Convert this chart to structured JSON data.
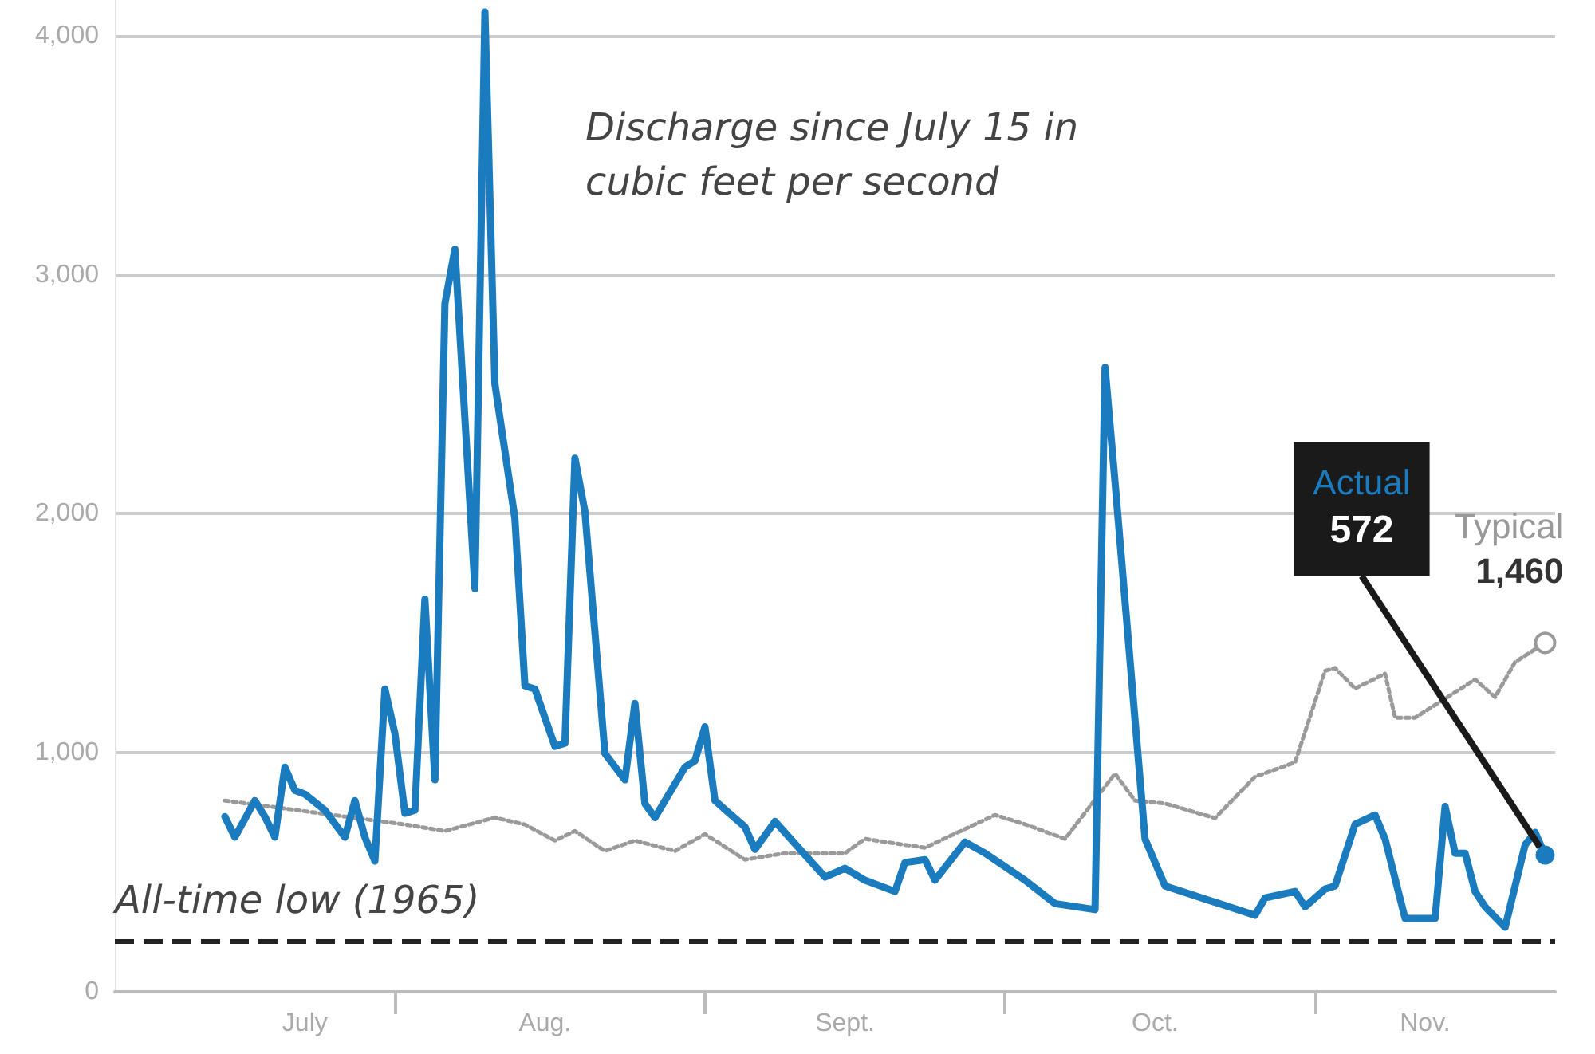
{
  "chart_data": {
    "type": "line",
    "title": "Discharge since July 15 in cubic feet per second",
    "xlim": [
      "--07-04",
      "--11-25"
    ],
    "xticks": [
      {
        "value": "--07-23",
        "label": "July"
      },
      {
        "value": "--08-01",
        "label": null
      },
      {
        "value": "--08-16",
        "label": "Aug."
      },
      {
        "value": "--09-01",
        "label": null
      },
      {
        "value": "--09-15",
        "label": "Sept."
      },
      {
        "value": "--10-01",
        "label": null
      },
      {
        "value": "--10-16",
        "label": "Oct."
      },
      {
        "value": "--11-01",
        "label": null
      },
      {
        "value": "--11-12",
        "label": "Nov."
      }
    ],
    "ylim": [
      0,
      4150
    ],
    "yticks": [
      0,
      {
        "value": 1000,
        "label": "1,000"
      },
      {
        "value": 2000,
        "label": "2,000"
      },
      {
        "value": 3000,
        "label": "3,000"
      },
      {
        "value": 4000,
        "label": "4,000"
      }
    ],
    "grid": "y",
    "series": [
      {
        "name": "Typical",
        "color": "#9a9a9a",
        "line_style": "dotted",
        "x": [
          "--07-15",
          "--08-02",
          "--08-06",
          "--08-11",
          "--08-14",
          "--08-17",
          "--08-19",
          "--08-22",
          "--08-25",
          "--08-29",
          "--09-01",
          "--09-05",
          "--09-09",
          "--09-15",
          "--09-17",
          "--09-21",
          "--09-23",
          "--09-30",
          "--10-03",
          "--10-07",
          "--10-12",
          "--10-14",
          "--10-17",
          "--10-22",
          "--10-26",
          "--10-30",
          "--11-02",
          "--11-03",
          "--11-05",
          "--11-08",
          "--11-09",
          "--11-11",
          "--11-17",
          "--11-19",
          "--11-21",
          "--11-24"
        ],
        "values": [
          800,
          700,
          673,
          729,
          700,
          633,
          673,
          589,
          633,
          589,
          660,
          553,
          580,
          580,
          640,
          615,
          603,
          740,
          701,
          640,
          913,
          800,
          788,
          727,
          900,
          960,
          1343,
          1355,
          1269,
          1331,
          1147,
          1147,
          1307,
          1233,
          1380,
          1460
        ],
        "value_labels": [
          null,
          null,
          null,
          null,
          null,
          null,
          null,
          null,
          null,
          null,
          null,
          null,
          null,
          null,
          null,
          null,
          null,
          null,
          null,
          null,
          null,
          null,
          null,
          null,
          null,
          null,
          null,
          null,
          null,
          null,
          null,
          null,
          null,
          null,
          null,
          "1,460"
        ]
      },
      {
        "name": "Actual",
        "color": "#1a7bbf",
        "line_style": "solid",
        "x": [
          "--07-15",
          "--07-16",
          "--07-18",
          "--07-19",
          "--07-20",
          "--07-21",
          "--07-22",
          "--07-23",
          "--07-25",
          "--07-27",
          "--07-28",
          "--07-29",
          "--07-30",
          "--07-31",
          "--08-01",
          "--08-02",
          "--08-03",
          "--08-04",
          "--08-05",
          "--08-06",
          "--08-07",
          "--08-09",
          "--08-10",
          "--08-11",
          "--08-13",
          "--08-14",
          "--08-15",
          "--08-17",
          "--08-18",
          "--08-19",
          "--08-20",
          "--08-22",
          "--08-24",
          "--08-25",
          "--08-26",
          "--08-27",
          "--08-30",
          "--08-31",
          "--09-01",
          "--09-02",
          "--09-03",
          "--09-05",
          "--09-06",
          "--09-08",
          "--09-13",
          "--09-15",
          "--09-17",
          "--09-20",
          "--09-21",
          "--09-23",
          "--09-24",
          "--09-27",
          "--09-29",
          "--10-03",
          "--10-06",
          "--10-10",
          "--10-11",
          "--10-12",
          "--10-15",
          "--10-17",
          "--10-26",
          "--10-27",
          "--10-30",
          "--10-31",
          "--11-02",
          "--11-03",
          "--11-05",
          "--11-07",
          "--11-08",
          "--11-10",
          "--11-13",
          "--11-14",
          "--11-15",
          "--11-16",
          "--11-17",
          "--11-18",
          "--11-20",
          "--11-22",
          "--11-23",
          "--11-24"
        ],
        "values": [
          733,
          647,
          800,
          733,
          647,
          940,
          843,
          827,
          760,
          647,
          800,
          647,
          547,
          1267,
          1080,
          747,
          760,
          1643,
          887,
          2880,
          3107,
          1687,
          4100,
          2543,
          1980,
          1280,
          1267,
          1027,
          1040,
          2233,
          2009,
          997,
          887,
          1207,
          787,
          729,
          940,
          967,
          1109,
          800,
          763,
          690,
          596,
          713,
          480,
          517,
          467,
          420,
          541,
          553,
          467,
          627,
          580,
          467,
          369,
          344,
          2613,
          2133,
          640,
          443,
          320,
          393,
          420,
          356,
          430,
          443,
          701,
          740,
          640,
          307,
          307,
          776,
          580,
          580,
          420,
          356,
          270,
          615,
          667,
          572
        ],
        "value_labels": [
          null,
          null,
          null,
          null,
          null,
          null,
          null,
          null,
          null,
          null,
          null,
          null,
          null,
          null,
          null,
          null,
          null,
          null,
          null,
          null,
          null,
          null,
          null,
          null,
          null,
          null,
          null,
          null,
          null,
          null,
          null,
          null,
          null,
          null,
          null,
          null,
          null,
          null,
          null,
          null,
          null,
          null,
          null,
          null,
          null,
          null,
          null,
          null,
          null,
          null,
          null,
          null,
          null,
          null,
          null,
          null,
          null,
          null,
          null,
          null,
          null,
          null,
          null,
          null,
          null,
          null,
          null,
          null,
          null,
          null,
          null,
          null,
          null,
          null,
          null,
          null,
          null,
          null,
          null,
          "572"
        ]
      }
    ],
    "ref_lines": [
      {
        "axis": "y",
        "value": 210,
        "label": "All-time low (1965)",
        "color": "#222222",
        "line_style": "dashed"
      }
    ]
  }
}
